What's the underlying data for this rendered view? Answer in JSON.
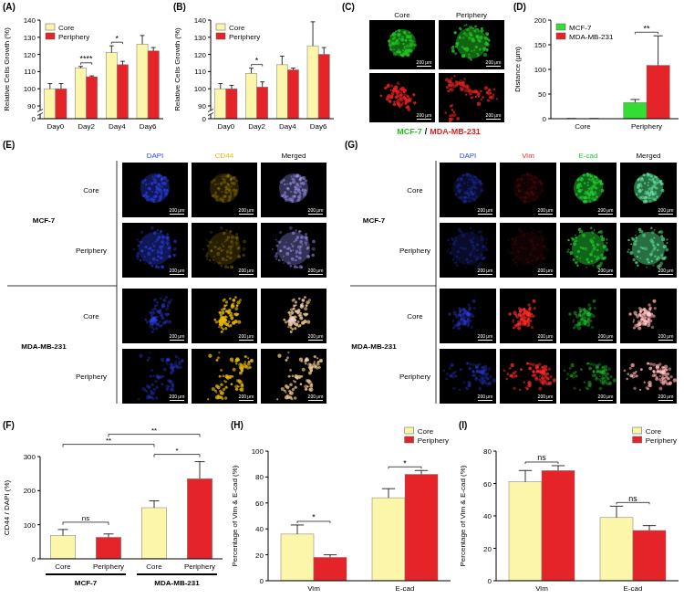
{
  "chart_data": [
    {
      "type": "bar",
      "panel_label": "(A)",
      "y_label": "Relative Cells Growth (%)",
      "categories": [
        "Day0",
        "Day2",
        "Day4",
        "Day6"
      ],
      "series": [
        {
          "name": "Core",
          "color": "#fbf6a9",
          "values": [
            100,
            112,
            121,
            126
          ],
          "errors": [
            3,
            1,
            4,
            5
          ]
        },
        {
          "name": "Periphery",
          "color": "#e5242a",
          "values": [
            100,
            107,
            114,
            122
          ],
          "errors": [
            3,
            0.5,
            2,
            2
          ]
        }
      ],
      "ylim": [
        0,
        140
      ],
      "yticks": [
        0,
        90,
        100,
        110,
        120,
        130,
        140
      ],
      "legend": "upper left",
      "annotations": [
        {
          "text": "****",
          "category": 1
        },
        {
          "text": "*",
          "category": 2
        }
      ]
    },
    {
      "type": "bar",
      "panel_label": "(B)",
      "y_label": "Relative Cells Growth (%)",
      "categories": [
        "Day0",
        "Day2",
        "Day4",
        "Day6"
      ],
      "series": [
        {
          "name": "Core",
          "color": "#fbf6a9",
          "values": [
            100,
            109,
            114,
            125
          ],
          "errors": [
            3,
            3,
            5,
            14
          ]
        },
        {
          "name": "Periphery",
          "color": "#e5242a",
          "values": [
            100,
            101,
            111,
            120
          ],
          "errors": [
            2,
            3,
            1,
            4
          ]
        }
      ],
      "ylim": [
        0,
        140
      ],
      "yticks": [
        0,
        90,
        100,
        110,
        120,
        130,
        140
      ],
      "legend": "upper left",
      "annotations": [
        {
          "text": "*",
          "category": 1
        }
      ]
    },
    {
      "type": "bar",
      "panel_label": "(D)",
      "y_label": "Distance (μm)",
      "categories": [
        "Core",
        "Periphery"
      ],
      "series": [
        {
          "name": "MCF-7",
          "color": "#33dd33",
          "values": [
            0,
            33
          ],
          "errors": [
            0,
            6
          ]
        },
        {
          "name": "MDA-MB-231",
          "color": "#e5242a",
          "values": [
            0,
            108
          ],
          "errors": [
            0,
            60
          ]
        }
      ],
      "ylim": [
        0,
        200
      ],
      "yticks": [
        0,
        50,
        100,
        150,
        200
      ],
      "legend": "upper left",
      "annotations": [
        {
          "text": "**",
          "category": 1
        }
      ]
    },
    {
      "type": "bar",
      "panel_label": "(F)",
      "y_label": "CD44 / DAPI (%)",
      "categories": [
        "Core",
        "Periphery",
        "Core",
        "Periphery"
      ],
      "values": [
        68,
        63,
        150,
        235
      ],
      "errors": [
        18,
        10,
        20,
        50
      ],
      "colors": [
        "#fbf6a9",
        "#e5242a",
        "#fbf6a9",
        "#e5242a"
      ],
      "groups": [
        {
          "label": "MCF-7",
          "categories": [
            0,
            1
          ]
        },
        {
          "label": "MDA-MB-231",
          "categories": [
            2,
            3
          ]
        }
      ],
      "ylim": [
        0,
        300
      ],
      "yticks": [
        0,
        100,
        200,
        300
      ],
      "annotations": [
        {
          "text": "ns",
          "from": 0,
          "to": 1
        },
        {
          "text": "*",
          "from": 2,
          "to": 3
        },
        {
          "text": "**",
          "from": 0,
          "to": 2
        },
        {
          "text": "**",
          "from": 1,
          "to": 3
        }
      ]
    },
    {
      "type": "bar",
      "panel_label": "(H)",
      "y_label": "Percentage of Vim & E-cad (%)",
      "categories": [
        "Vim",
        "E-cad"
      ],
      "series": [
        {
          "name": "Core",
          "color": "#fbf6a9",
          "values": [
            36,
            64
          ],
          "errors": [
            7,
            7
          ]
        },
        {
          "name": "Periphery",
          "color": "#e5242a",
          "values": [
            18,
            82
          ],
          "errors": [
            2,
            3
          ]
        }
      ],
      "ylim": [
        0,
        100
      ],
      "yticks": [
        0,
        20,
        40,
        60,
        80,
        100
      ],
      "legend": "upper right",
      "annotations": [
        {
          "text": "*",
          "category": 0
        },
        {
          "text": "*",
          "category": 1
        }
      ]
    },
    {
      "type": "bar",
      "panel_label": "(I)",
      "y_label": "Percentage of Vim & E-cad (%)",
      "categories": [
        "Vim",
        "E-cad"
      ],
      "series": [
        {
          "name": "Core",
          "color": "#fbf6a9",
          "values": [
            61,
            39
          ],
          "errors": [
            7,
            7
          ]
        },
        {
          "name": "Periphery",
          "color": "#e5242a",
          "values": [
            68,
            31
          ],
          "errors": [
            3,
            3
          ]
        }
      ],
      "ylim": [
        0,
        80
      ],
      "yticks": [
        0,
        20,
        40,
        60,
        80
      ],
      "legend": "upper right",
      "annotations": [
        {
          "text": "ns",
          "category": 0
        },
        {
          "text": "ns",
          "category": 1
        }
      ]
    }
  ],
  "images": [
    {
      "type": "image_pair",
      "panel_label": "(C)",
      "columns": [
        "Core",
        "Periphery"
      ],
      "rows": [
        {
          "label": "MCF-7",
          "color": "#22c022"
        },
        {
          "label": "MDA-MB-231",
          "color": "#e02020"
        }
      ],
      "separator": "/",
      "scale_bar": "200 μm"
    },
    {
      "type": "image_grid",
      "panel_label": "(E)",
      "channels": [
        {
          "label": "DAPI",
          "color": "#3347ff"
        },
        {
          "label": "CD44",
          "color": "#e6b800"
        },
        {
          "label": "Merged"
        }
      ],
      "groups": [
        {
          "label": "MCF-7",
          "rows": [
            "Core",
            "Periphery"
          ]
        },
        {
          "label": "MDA-MB-231",
          "rows": [
            "Core",
            "Periphery"
          ]
        }
      ],
      "scale_bar": "200 μm"
    },
    {
      "type": "image_grid",
      "panel_label": "(G)",
      "channels": [
        {
          "label": "DAPI",
          "color": "#3347ff"
        },
        {
          "label": "Vim",
          "color": "#ff2a2a"
        },
        {
          "label": "E-cad",
          "color": "#22cc33"
        },
        {
          "label": "Merged"
        }
      ],
      "groups": [
        {
          "label": "MCF-7",
          "rows": [
            "Core",
            "Periphery"
          ]
        },
        {
          "label": "MDA-MB-231",
          "rows": [
            "Core",
            "Periphery"
          ]
        }
      ],
      "scale_bar": "200 μm"
    }
  ]
}
